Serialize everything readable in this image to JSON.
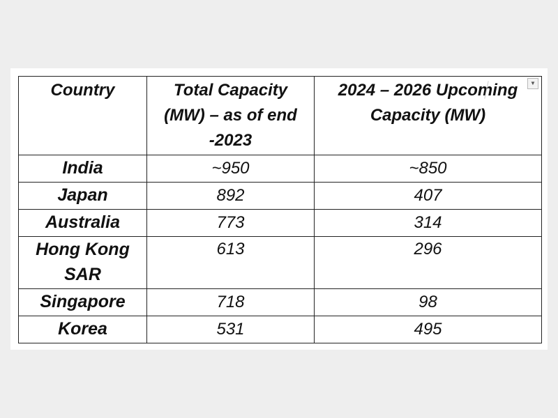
{
  "table": {
    "headers": [
      "Country",
      "Total Capacity (MW) – as of end -2023",
      "2024 – 2026 Upcoming Capacity (MW)"
    ],
    "rows": [
      {
        "country": "India",
        "total": "~950",
        "upcoming": "~850"
      },
      {
        "country": "Japan",
        "total": "892",
        "upcoming": "407"
      },
      {
        "country": "Australia",
        "total": "773",
        "upcoming": "314"
      },
      {
        "country": "Hong Kong SAR",
        "total": "613",
        "upcoming": "296"
      },
      {
        "country": "Singapore",
        "total": "718",
        "upcoming": "98"
      },
      {
        "country": "Korea",
        "total": "531",
        "upcoming": "495"
      }
    ]
  },
  "icons": {
    "dropdown": "chevron-down-icon"
  }
}
